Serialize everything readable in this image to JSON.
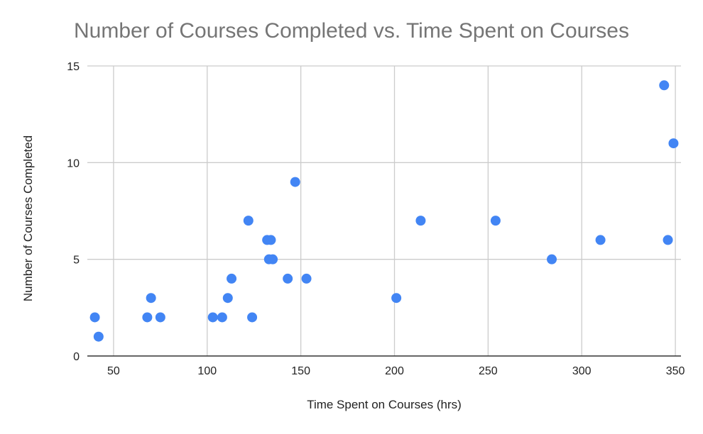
{
  "chart_data": {
    "type": "scatter",
    "title": "Number of Courses Completed vs. Time Spent on Courses",
    "xlabel": "Time Spent on Courses (hrs)",
    "ylabel": "Number of Courses Completed",
    "xlim": [
      36,
      353
    ],
    "ylim": [
      0,
      15
    ],
    "xticks": [
      50,
      100,
      150,
      200,
      250,
      300,
      350
    ],
    "yticks": [
      0,
      5,
      10,
      15
    ],
    "grid": true,
    "legend": null,
    "marker_color": "#4285F4",
    "series": [
      {
        "name": "Number of Courses Completed",
        "points": [
          {
            "x": 40,
            "y": 2
          },
          {
            "x": 42,
            "y": 1
          },
          {
            "x": 68,
            "y": 2
          },
          {
            "x": 70,
            "y": 3
          },
          {
            "x": 75,
            "y": 2
          },
          {
            "x": 103,
            "y": 2
          },
          {
            "x": 108,
            "y": 2
          },
          {
            "x": 111,
            "y": 3
          },
          {
            "x": 113,
            "y": 4
          },
          {
            "x": 122,
            "y": 7
          },
          {
            "x": 124,
            "y": 2
          },
          {
            "x": 132,
            "y": 6
          },
          {
            "x": 134,
            "y": 6
          },
          {
            "x": 133,
            "y": 5
          },
          {
            "x": 135,
            "y": 5
          },
          {
            "x": 143,
            "y": 4
          },
          {
            "x": 147,
            "y": 9
          },
          {
            "x": 153,
            "y": 4
          },
          {
            "x": 201,
            "y": 3
          },
          {
            "x": 214,
            "y": 7
          },
          {
            "x": 254,
            "y": 7
          },
          {
            "x": 284,
            "y": 5
          },
          {
            "x": 310,
            "y": 6
          },
          {
            "x": 344,
            "y": 14
          },
          {
            "x": 346,
            "y": 6
          },
          {
            "x": 349,
            "y": 11
          }
        ]
      }
    ]
  },
  "colors": {
    "title": "#757575",
    "text": "#222222",
    "grid": "#cccccc",
    "axis": "#333333",
    "marker": "#4285F4"
  }
}
